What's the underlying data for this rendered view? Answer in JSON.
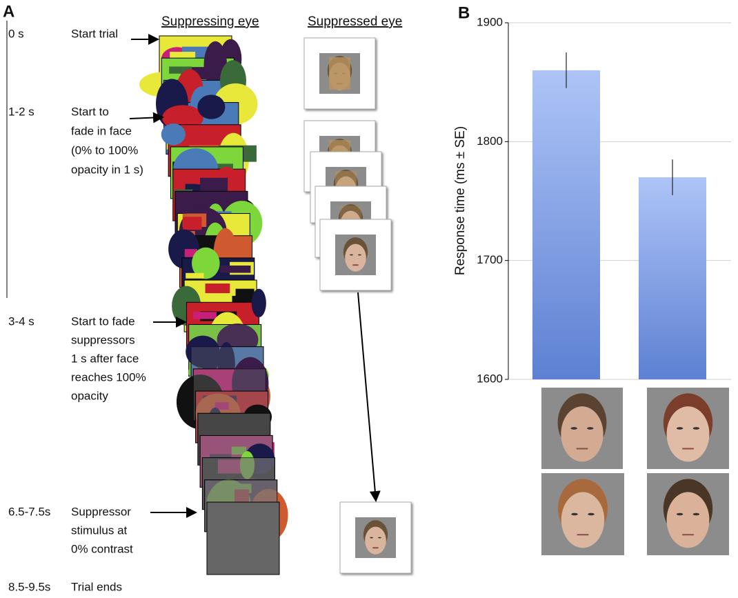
{
  "panel_a": {
    "label": "A",
    "headers": [
      "Suppressing eye",
      "Suppressed eye"
    ],
    "events": [
      {
        "time": "0 s",
        "description": [
          "Start trial"
        ]
      },
      {
        "time": "1-2 s",
        "description": [
          "Start to",
          "fade in face",
          "(0% to 100%",
          "opacity in 1 s)"
        ]
      },
      {
        "time": "3-4 s",
        "description": [
          "Start to fade",
          "suppressors",
          "1 s after face",
          "reaches 100%",
          "opacity"
        ]
      },
      {
        "time": "6.5-7.5s",
        "description": [
          "Suppressor",
          "stimulus at",
          "0% contrast"
        ]
      },
      {
        "time": "8.5-9.5s",
        "description": [
          "Trial ends"
        ]
      }
    ]
  },
  "chart_data": {
    "type": "bar",
    "panel_label": "B",
    "y_label": "Response time (ms ± SE)",
    "categories": [
      null,
      null
    ],
    "values": [
      1860,
      1770
    ],
    "errors": [
      15,
      15
    ],
    "ylim": [
      1600,
      1900
    ],
    "yticks": [
      1600,
      1700,
      1800,
      1900
    ],
    "grid": true
  }
}
